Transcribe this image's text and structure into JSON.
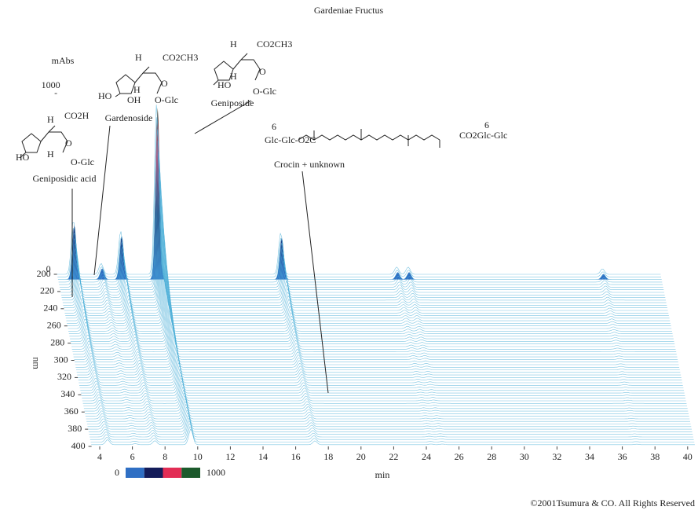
{
  "chart_data": {
    "type": "chromatogram3d",
    "title": "Gardeniae Fructus",
    "xlabel": "min",
    "ylabel": "nm",
    "zlabel": "mAbs",
    "xlim": [
      3.5,
      40.5
    ],
    "xticks": [
      4,
      6,
      8,
      10,
      12,
      14,
      16,
      18,
      20,
      22,
      24,
      26,
      28,
      30,
      32,
      34,
      36,
      38,
      40
    ],
    "ylim": [
      200,
      400
    ],
    "yticks": [
      200,
      220,
      240,
      260,
      280,
      300,
      320,
      340,
      360,
      380,
      400
    ],
    "zlim": [
      0,
      1000
    ],
    "zticks": [
      0,
      1000
    ],
    "trace_color": "#4fb0d8",
    "colorbar": {
      "ticks": [
        0,
        1000
      ],
      "colors": [
        "#2f6fc4",
        "#141c5a",
        "#e22d55",
        "#1c5a2c"
      ]
    },
    "peaks": [
      {
        "time": 4.5,
        "height": 300
      },
      {
        "time": 6.2,
        "height": 60
      },
      {
        "time": 7.4,
        "height": 240
      },
      {
        "time": 9.6,
        "height": 950
      },
      {
        "time": 17.2,
        "height": 230
      },
      {
        "time": 24.3,
        "height": 40
      },
      {
        "time": 25.0,
        "height": 40
      },
      {
        "time": 36.9,
        "height": 30
      }
    ],
    "compounds": [
      {
        "name": "Geniposidic acid",
        "atoms": [
          "H",
          "CO2H",
          "HO",
          "H",
          "O-Glc",
          "O"
        ]
      },
      {
        "name": "Gardenoside",
        "atoms": [
          "H",
          "CO2CH3",
          "HO",
          "OH",
          "H",
          "O-Glc",
          "O"
        ]
      },
      {
        "name": "Geniposide",
        "atoms": [
          "H",
          "CO2CH3",
          "HO",
          "H",
          "O-Glc",
          "O"
        ]
      },
      {
        "name": "Crocin + unknown",
        "atoms": [
          "6",
          "Glc-Glc-O2C",
          "CO2Glc-Glc",
          "6"
        ]
      }
    ],
    "copyright": "©2001Tsumura & CO. All Rights Reserved"
  }
}
